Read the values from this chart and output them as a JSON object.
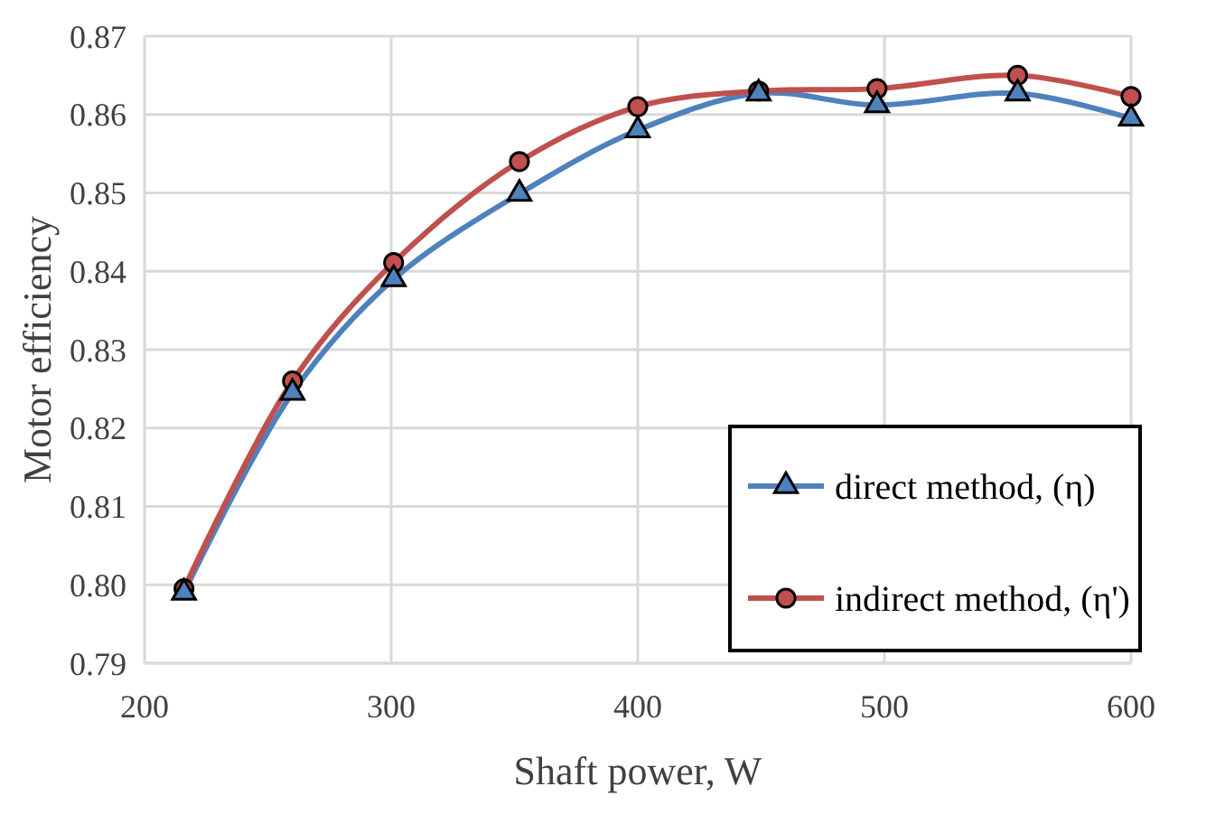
{
  "chart_data": {
    "type": "line",
    "xlabel": "Shaft power, W",
    "ylabel": "Motor efficiency",
    "x": [
      216,
      260,
      301,
      352,
      400,
      449,
      497,
      554,
      600
    ],
    "series": [
      {
        "name": "direct method, (η)",
        "color": "#4f81bd",
        "marker": "triangle",
        "values": [
          0.799,
          0.8245,
          0.839,
          0.8499,
          0.858,
          0.8627,
          0.8612,
          0.8627,
          0.8595
        ]
      },
      {
        "name": "indirect method, (η')",
        "color": "#c0504d",
        "marker": "circle",
        "values": [
          0.7995,
          0.826,
          0.8411,
          0.854,
          0.861,
          0.863,
          0.8633,
          0.865,
          0.8623
        ]
      }
    ],
    "xlim": [
      200,
      600
    ],
    "xticks": [
      200,
      300,
      400,
      500,
      600
    ],
    "ylim": [
      0.79,
      0.87
    ],
    "yticks": [
      {
        "value": 0.79,
        "label": "0.79"
      },
      {
        "value": 0.8,
        "label": "0.80"
      },
      {
        "value": 0.81,
        "label": "0.81"
      },
      {
        "value": 0.82,
        "label": "0.82"
      },
      {
        "value": 0.83,
        "label": "0.83"
      },
      {
        "value": 0.84,
        "label": "0.84"
      },
      {
        "value": 0.85,
        "label": "0.85"
      },
      {
        "value": 0.86,
        "label": "0.86"
      },
      {
        "value": 0.87,
        "label": "0.87"
      }
    ],
    "grid": true,
    "legend": "bottom right",
    "line_style": "solid"
  }
}
